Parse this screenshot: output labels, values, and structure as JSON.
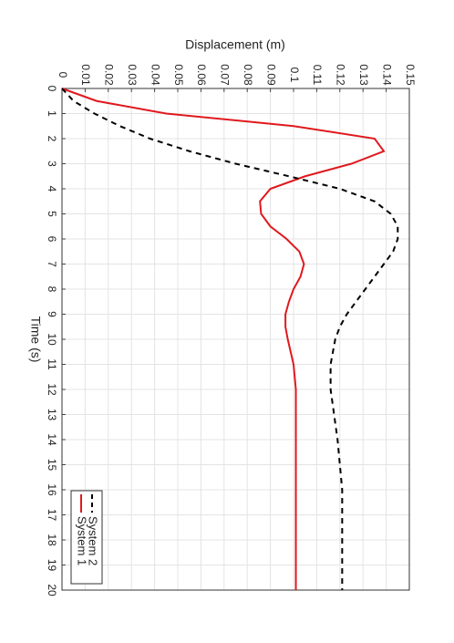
{
  "chart_data": {
    "type": "line",
    "title": "Displacement (m)",
    "x_label": "Time (s)",
    "x": [
      0,
      0.5,
      1,
      1.5,
      2,
      2.5,
      3,
      3.5,
      4,
      4.5,
      5,
      5.5,
      6,
      6.5,
      7,
      7.5,
      8,
      8.5,
      9,
      9.5,
      10,
      11,
      12,
      13,
      14,
      15,
      16,
      17,
      18,
      19,
      20
    ],
    "series": [
      {
        "name": "System 1",
        "color": "#e0191e",
        "dash": false,
        "values": [
          0,
          0.015,
          0.045,
          0.1,
          0.135,
          0.139,
          0.125,
          0.105,
          0.09,
          0.0855,
          0.086,
          0.09,
          0.097,
          0.1025,
          0.1045,
          0.103,
          0.1,
          0.098,
          0.0965,
          0.0965,
          0.0975,
          0.1,
          0.101,
          0.101,
          0.101,
          0.101,
          0.101,
          0.101,
          0.101,
          0.101,
          0.101
        ]
      },
      {
        "name": "System 2",
        "color": "#000000",
        "dash": true,
        "values": [
          0,
          0.005,
          0.014,
          0.025,
          0.038,
          0.055,
          0.075,
          0.098,
          0.12,
          0.135,
          0.142,
          0.145,
          0.145,
          0.143,
          0.139,
          0.135,
          0.131,
          0.127,
          0.123,
          0.12,
          0.118,
          0.116,
          0.116,
          0.1175,
          0.119,
          0.12,
          0.121,
          0.121,
          0.121,
          0.121,
          0.121
        ]
      }
    ],
    "xlim": [
      0,
      20
    ],
    "xticks": [
      0,
      1,
      2,
      3,
      4,
      5,
      6,
      7,
      8,
      9,
      10,
      11,
      12,
      13,
      14,
      15,
      16,
      17,
      18,
      19,
      20
    ],
    "ylim": [
      0,
      0.15
    ],
    "yticks": [
      0,
      0.01,
      0.02,
      0.03,
      0.04,
      0.05,
      0.06,
      0.07,
      0.08,
      0.09,
      0.1,
      0.11,
      0.12,
      0.13,
      0.14,
      0.15
    ],
    "grid": true,
    "legend": "bottom-left"
  }
}
